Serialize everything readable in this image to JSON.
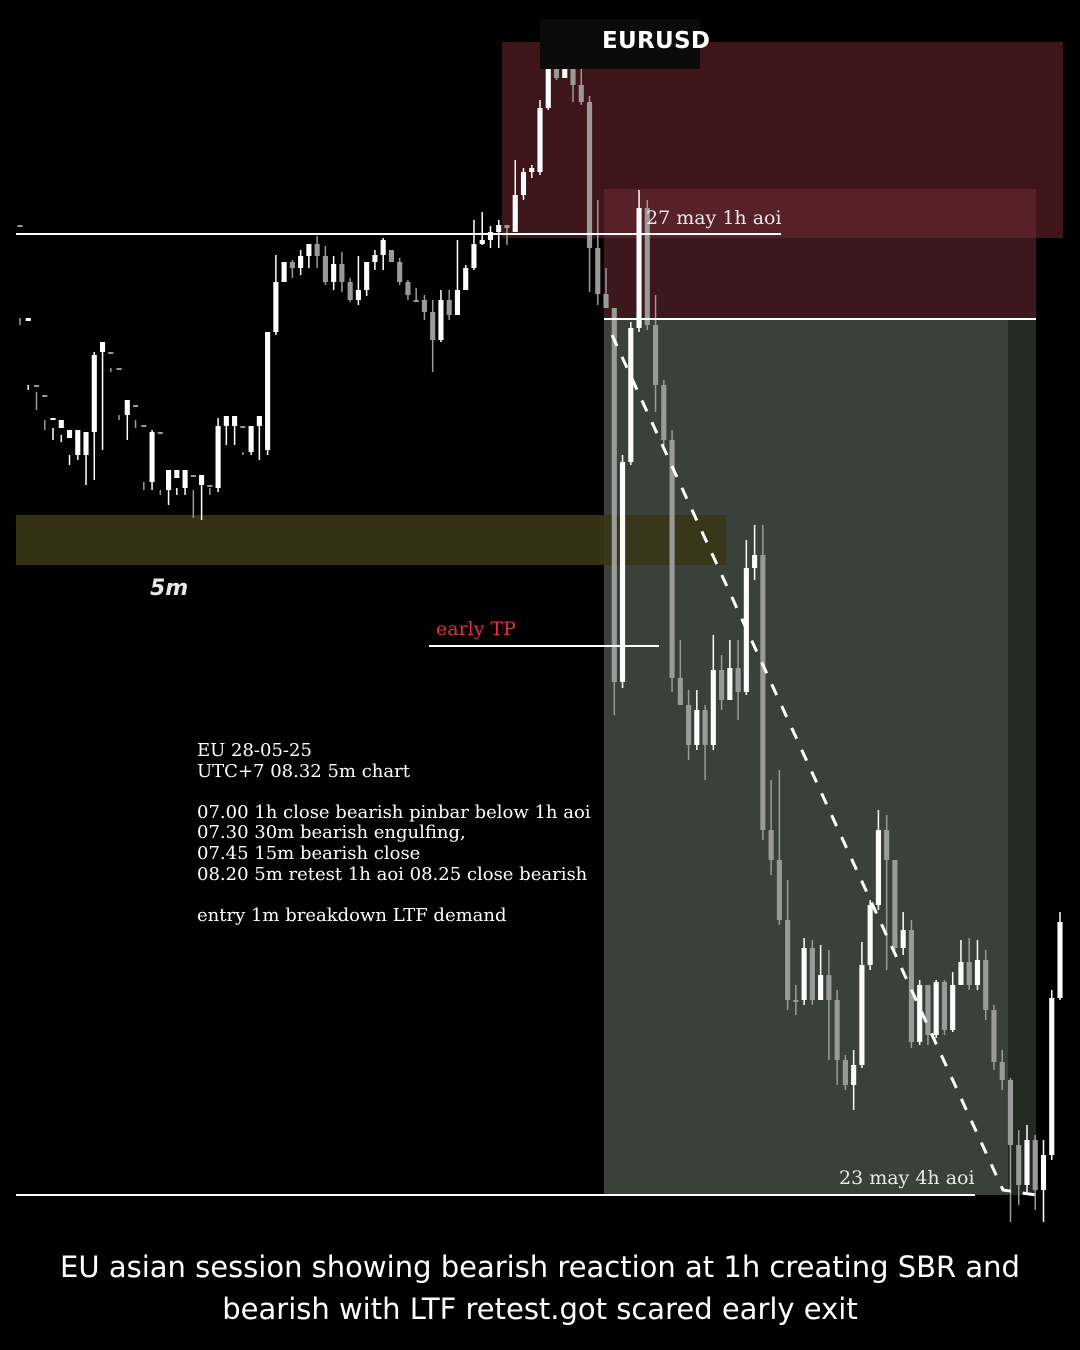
{
  "symbol": "EURUSD",
  "colors": {
    "background": "#000000",
    "supply_zone": "#3e1519",
    "aoi_1h_zone": "#6e2a33",
    "profit_zone": "#3a413a",
    "demand_band": "#3a3617",
    "early_tp": "#e3323b",
    "candle_bull": "#ffffff",
    "candle_bear": "#9a9a9a"
  },
  "labels": {
    "timeframe": "5m",
    "aoi_1h": "27 may 1h aoi",
    "early_tp": "early TP",
    "aoi_4h": "23 may 4h aoi"
  },
  "notes": [
    "EU 28-05-25",
    "UTC+7 08.32 5m chart",
    "",
    "07.00 1h close bearish pinbar below 1h aoi",
    "07.30 30m bearish engulfing,",
    "07.45 15m bearish close",
    "08.20 5m retest 1h aoi 08.25 close bearish",
    "",
    "entry 1m breakdown LTF demand"
  ],
  "caption": [
    "EU asian session showing bearish reaction at 1h creating SBR and",
    "bearish with LTF retest.got scared early exit"
  ],
  "chart_data": {
    "type": "candlestick",
    "timeframe": "5m",
    "series": [
      {
        "values": [
          [
            225,
            225,
            318,
            325
          ],
          [
            321,
            318,
            385,
            390
          ],
          [
            385,
            385,
            392,
            410
          ],
          [
            395,
            395,
            420,
            430
          ],
          [
            420,
            418,
            428,
            440
          ],
          [
            428,
            420,
            435,
            442
          ],
          [
            438,
            430,
            455,
            465
          ],
          [
            455,
            430,
            455,
            460
          ],
          [
            455,
            432,
            432,
            485
          ],
          [
            432,
            355,
            352,
            480
          ],
          [
            352,
            342,
            352,
            450
          ],
          [
            352,
            352,
            368,
            372
          ],
          [
            368,
            368,
            415,
            420
          ],
          [
            415,
            400,
            405,
            440
          ],
          [
            405,
            405,
            420,
            428
          ],
          [
            425,
            425,
            482,
            490
          ],
          [
            482,
            432,
            430,
            490
          ],
          [
            432,
            432,
            490,
            495
          ],
          [
            490,
            470,
            470,
            505
          ],
          [
            478,
            470,
            488,
            495
          ],
          [
            488,
            470,
            470,
            495
          ],
          [
            475,
            475,
            490,
            518
          ],
          [
            485,
            475,
            478,
            520
          ],
          [
            485,
            485,
            488,
            495
          ],
          [
            488,
            426,
            418,
            492
          ],
          [
            426,
            416,
            426,
            445
          ],
          [
            426,
            416,
            426,
            445
          ],
          [
            426,
            426,
            452,
            455
          ],
          [
            452,
            426,
            426,
            455
          ],
          [
            426,
            416,
            426,
            460
          ],
          [
            450,
            332,
            332,
            455
          ],
          [
            332,
            282,
            255,
            335
          ],
          [
            282,
            262,
            262,
            282
          ],
          [
            262,
            268,
            260,
            278
          ],
          [
            268,
            256,
            250,
            275
          ],
          [
            256,
            244,
            244,
            268
          ],
          [
            244,
            256,
            236,
            268
          ],
          [
            256,
            282,
            246,
            285
          ],
          [
            282,
            264,
            256,
            290
          ],
          [
            264,
            282,
            252,
            292
          ],
          [
            282,
            300,
            278,
            302
          ],
          [
            300,
            290,
            256,
            305
          ],
          [
            290,
            262,
            262,
            296
          ],
          [
            262,
            255,
            250,
            270
          ],
          [
            255,
            240,
            238,
            270
          ],
          [
            250,
            262,
            255,
            262
          ],
          [
            262,
            282,
            258,
            285
          ],
          [
            282,
            295,
            280,
            300
          ],
          [
            300,
            300,
            288,
            302
          ],
          [
            300,
            312,
            295,
            320
          ],
          [
            312,
            340,
            300,
            372
          ],
          [
            340,
            300,
            290,
            342
          ],
          [
            300,
            315,
            290,
            320
          ],
          [
            315,
            290,
            240,
            295
          ],
          [
            290,
            268,
            265,
            285
          ],
          [
            268,
            244,
            220,
            270
          ],
          [
            244,
            240,
            212,
            245
          ],
          [
            240,
            232,
            226,
            248
          ],
          [
            232,
            225,
            220,
            248
          ],
          [
            225,
            228,
            225,
            245
          ],
          [
            232,
            195,
            160,
            232
          ],
          [
            195,
            172,
            168,
            200
          ],
          [
            172,
            168,
            165,
            178
          ],
          [
            172,
            108,
            100,
            175
          ],
          [
            108,
            52,
            45,
            110
          ],
          [
            52,
            78,
            45,
            80
          ],
          [
            78,
            52,
            45,
            78
          ],
          [
            52,
            85,
            50,
            102
          ],
          [
            85,
            102,
            60,
            105
          ],
          [
            102,
            248,
            96,
            292
          ],
          [
            248,
            294,
            200,
            305
          ],
          [
            294,
            308,
            268,
            308
          ],
          [
            308,
            682,
            308,
            715
          ],
          [
            682,
            462,
            455,
            688
          ],
          [
            462,
            328,
            322,
            465
          ],
          [
            328,
            208,
            190,
            332
          ],
          [
            208,
            325,
            200,
            330
          ],
          [
            325,
            385,
            295,
            412
          ],
          [
            385,
            440,
            380,
            450
          ],
          [
            440,
            678,
            430,
            692
          ],
          [
            678,
            705,
            640,
            705
          ],
          [
            705,
            745,
            690,
            760
          ],
          [
            745,
            710,
            690,
            750
          ],
          [
            710,
            745,
            705,
            780
          ],
          [
            745,
            670,
            635,
            750
          ],
          [
            670,
            700,
            655,
            710
          ],
          [
            700,
            668,
            640,
            695
          ],
          [
            668,
            692,
            640,
            720
          ],
          [
            692,
            568,
            540,
            695
          ],
          [
            568,
            555,
            525,
            580
          ],
          [
            555,
            830,
            525,
            840
          ],
          [
            830,
            860,
            780,
            875
          ],
          [
            860,
            920,
            770,
            925
          ],
          [
            920,
            1000,
            880,
            1010
          ],
          [
            1000,
            1000,
            985,
            1015
          ],
          [
            1000,
            948,
            938,
            1005
          ],
          [
            948,
            1000,
            940,
            1005
          ],
          [
            1000,
            975,
            945,
            1000
          ],
          [
            975,
            1000,
            950,
            1060
          ],
          [
            1000,
            1060,
            990,
            1085
          ],
          [
            1060,
            1085,
            1055,
            1090
          ],
          [
            1085,
            1065,
            1050,
            1110
          ],
          [
            1065,
            965,
            942,
            1068
          ],
          [
            965,
            905,
            900,
            970
          ],
          [
            905,
            830,
            810,
            910
          ],
          [
            830,
            860,
            815,
            970
          ],
          [
            860,
            948,
            930,
            950
          ],
          [
            948,
            930,
            912,
            955
          ],
          [
            930,
            1042,
            920,
            1048
          ],
          [
            1042,
            985,
            980,
            1045
          ],
          [
            985,
            1035,
            985,
            1045
          ],
          [
            1035,
            982,
            980,
            1038
          ],
          [
            982,
            1030,
            980,
            1035
          ],
          [
            1030,
            985,
            972,
            1032
          ],
          [
            985,
            962,
            940,
            980
          ],
          [
            962,
            985,
            938,
            990
          ],
          [
            985,
            960,
            940,
            990
          ],
          [
            960,
            1010,
            950,
            1020
          ],
          [
            1010,
            1062,
            1005,
            1070
          ],
          [
            1062,
            1080,
            1050,
            1090
          ],
          [
            1080,
            1145,
            1078,
            1222
          ],
          [
            1145,
            1185,
            1130,
            1205
          ],
          [
            1185,
            1140,
            1125,
            1192
          ],
          [
            1140,
            1190,
            1135,
            1210
          ],
          [
            1190,
            1155,
            1140,
            1222
          ],
          [
            1155,
            998,
            990,
            1160
          ],
          [
            998,
            922,
            912,
            1000
          ]
        ]
      }
    ]
  }
}
